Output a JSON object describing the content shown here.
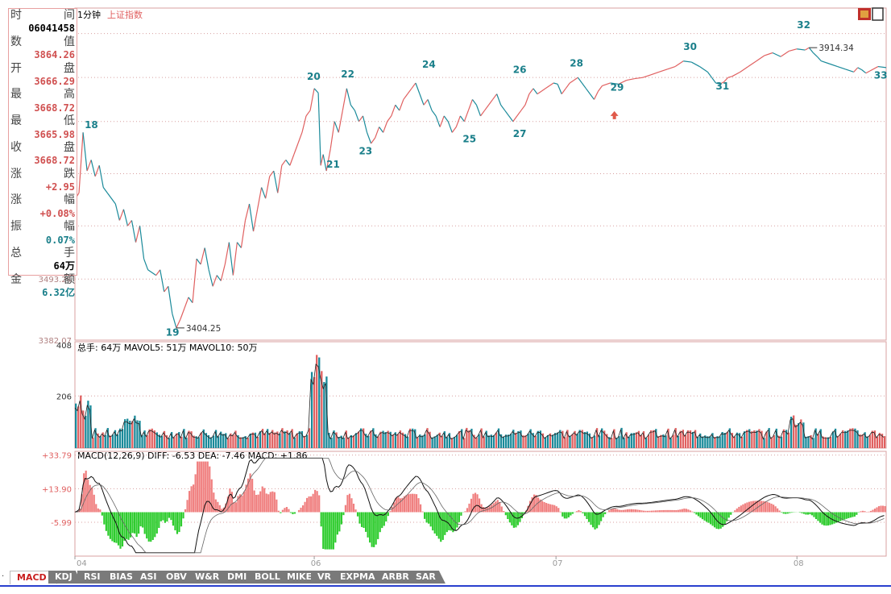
{
  "header": {
    "period": "1分钟",
    "index_name": "上证指数"
  },
  "info_box": {
    "rows": [
      {
        "label": "时",
        "label_right": "间",
        "value": ""
      },
      {
        "label": "",
        "label_right": "",
        "value": "06041458",
        "color": "#000000"
      },
      {
        "label": "数",
        "label_right": "值",
        "value": ""
      },
      {
        "label": "",
        "label_right": "",
        "value": "3864.26",
        "color": "#d05050"
      },
      {
        "label": "开",
        "label_right": "盘",
        "value": ""
      },
      {
        "label": "",
        "label_right": "",
        "value": "3666.29",
        "color": "#d05050"
      },
      {
        "label": "最",
        "label_right": "高",
        "value": ""
      },
      {
        "label": "",
        "label_right": "",
        "value": "3668.72",
        "color": "#d05050"
      },
      {
        "label": "最",
        "label_right": "低",
        "value": ""
      },
      {
        "label": "",
        "label_right": "",
        "value": "3665.98",
        "color": "#d05050"
      },
      {
        "label": "收",
        "label_right": "盘",
        "value": ""
      },
      {
        "label": "",
        "label_right": "",
        "value": "3668.72",
        "color": "#d05050"
      },
      {
        "label": "涨",
        "label_right": "跌",
        "value": ""
      },
      {
        "label": "",
        "label_right": "",
        "value": "+2.95",
        "color": "#d05050"
      },
      {
        "label": "涨",
        "label_right": "幅",
        "value": ""
      },
      {
        "label": "",
        "label_right": "",
        "value": "+0.08%",
        "color": "#d05050"
      },
      {
        "label": "振",
        "label_right": "幅",
        "value": ""
      },
      {
        "label": "",
        "label_right": "",
        "value": "0.07%",
        "color": "#1a7f8a"
      },
      {
        "label": "总",
        "label_right": "手",
        "value": ""
      },
      {
        "label": "",
        "label_right": "",
        "value": "64万",
        "color": "#000000"
      },
      {
        "label": "金",
        "label_right": "额",
        "value": ""
      },
      {
        "label": "",
        "label_right": "",
        "value": "6.32亿",
        "color": "#1a7f8a"
      }
    ]
  },
  "tabs": [
    {
      "label": "MACD",
      "active": true
    },
    {
      "label": "KDJ"
    },
    {
      "label": "RSI"
    },
    {
      "label": "BIAS"
    },
    {
      "label": "ASI"
    },
    {
      "label": "OBV"
    },
    {
      "label": "W&R"
    },
    {
      "label": "DMI"
    },
    {
      "label": "BOLL"
    },
    {
      "label": "MIKE"
    },
    {
      "label": "VR"
    },
    {
      "label": "EXPMA"
    },
    {
      "label": "ARBR"
    },
    {
      "label": "SAR"
    }
  ],
  "colors": {
    "up": "#e06060",
    "down": "#1a8a9a",
    "grid": "#d8a0a0",
    "label_red": "#e06060",
    "label_teal": "#1a7f8a",
    "macd_pos": "#f08080",
    "macd_neg": "#2ecc2e"
  },
  "chart_data": [
    {
      "type": "line",
      "name": "price",
      "ylim": [
        3382.07,
        3960
      ],
      "yticks": [
        3382.07,
        3493.24
      ],
      "xticks": [
        {
          "label": "04",
          "x": 0
        },
        {
          "label": "06",
          "x": 0.295
        },
        {
          "label": "07",
          "x": 0.593
        },
        {
          "label": "08",
          "x": 0.89
        }
      ],
      "price_path": [
        [
          0.0,
          3638
        ],
        [
          0.005,
          3650
        ],
        [
          0.01,
          3760
        ],
        [
          0.015,
          3690
        ],
        [
          0.02,
          3710
        ],
        [
          0.025,
          3680
        ],
        [
          0.03,
          3700
        ],
        [
          0.035,
          3660
        ],
        [
          0.04,
          3650
        ],
        [
          0.05,
          3630
        ],
        [
          0.055,
          3600
        ],
        [
          0.06,
          3620
        ],
        [
          0.065,
          3590
        ],
        [
          0.07,
          3600
        ],
        [
          0.075,
          3560
        ],
        [
          0.08,
          3590
        ],
        [
          0.085,
          3530
        ],
        [
          0.09,
          3510
        ],
        [
          0.1,
          3500
        ],
        [
          0.105,
          3510
        ],
        [
          0.11,
          3470
        ],
        [
          0.115,
          3480
        ],
        [
          0.12,
          3430
        ],
        [
          0.125,
          3404.25
        ],
        [
          0.13,
          3420
        ],
        [
          0.135,
          3440
        ],
        [
          0.14,
          3460
        ],
        [
          0.145,
          3450
        ],
        [
          0.15,
          3530
        ],
        [
          0.155,
          3520
        ],
        [
          0.16,
          3550
        ],
        [
          0.165,
          3510
        ],
        [
          0.17,
          3480
        ],
        [
          0.175,
          3500
        ],
        [
          0.18,
          3490
        ],
        [
          0.185,
          3520
        ],
        [
          0.19,
          3560
        ],
        [
          0.195,
          3500
        ],
        [
          0.2,
          3560
        ],
        [
          0.205,
          3550
        ],
        [
          0.21,
          3600
        ],
        [
          0.215,
          3630
        ],
        [
          0.22,
          3580
        ],
        [
          0.225,
          3620
        ],
        [
          0.23,
          3660
        ],
        [
          0.235,
          3640
        ],
        [
          0.24,
          3680
        ],
        [
          0.245,
          3690
        ],
        [
          0.25,
          3650
        ],
        [
          0.255,
          3700
        ],
        [
          0.26,
          3710
        ],
        [
          0.265,
          3700
        ],
        [
          0.27,
          3720
        ],
        [
          0.275,
          3740
        ],
        [
          0.28,
          3760
        ],
        [
          0.285,
          3790
        ],
        [
          0.29,
          3800
        ],
        [
          0.295,
          3840
        ],
        [
          0.3,
          3832
        ],
        [
          0.303,
          3700
        ],
        [
          0.306,
          3720
        ],
        [
          0.31,
          3690
        ],
        [
          0.315,
          3730
        ],
        [
          0.32,
          3780
        ],
        [
          0.325,
          3760
        ],
        [
          0.33,
          3800
        ],
        [
          0.335,
          3840
        ],
        [
          0.34,
          3810
        ],
        [
          0.345,
          3800
        ],
        [
          0.35,
          3780
        ],
        [
          0.355,
          3790
        ],
        [
          0.36,
          3760
        ],
        [
          0.365,
          3740
        ],
        [
          0.37,
          3750
        ],
        [
          0.375,
          3770
        ],
        [
          0.38,
          3760
        ],
        [
          0.385,
          3780
        ],
        [
          0.39,
          3790
        ],
        [
          0.395,
          3810
        ],
        [
          0.4,
          3800
        ],
        [
          0.405,
          3820
        ],
        [
          0.41,
          3830
        ],
        [
          0.415,
          3840
        ],
        [
          0.42,
          3850
        ],
        [
          0.425,
          3830
        ],
        [
          0.43,
          3810
        ],
        [
          0.435,
          3820
        ],
        [
          0.44,
          3800
        ],
        [
          0.445,
          3790
        ],
        [
          0.45,
          3770
        ],
        [
          0.455,
          3790
        ],
        [
          0.46,
          3780
        ],
        [
          0.465,
          3760
        ],
        [
          0.47,
          3770
        ],
        [
          0.475,
          3790
        ],
        [
          0.48,
          3780
        ],
        [
          0.485,
          3800
        ],
        [
          0.49,
          3820
        ],
        [
          0.495,
          3810
        ],
        [
          0.5,
          3790
        ],
        [
          0.505,
          3800
        ],
        [
          0.51,
          3810
        ],
        [
          0.515,
          3820
        ],
        [
          0.52,
          3830
        ],
        [
          0.525,
          3810
        ],
        [
          0.53,
          3800
        ],
        [
          0.535,
          3790
        ],
        [
          0.54,
          3780
        ],
        [
          0.545,
          3790
        ],
        [
          0.55,
          3800
        ],
        [
          0.555,
          3810
        ],
        [
          0.56,
          3830
        ],
        [
          0.565,
          3840
        ],
        [
          0.57,
          3830
        ],
        [
          0.575,
          3835
        ],
        [
          0.58,
          3840
        ],
        [
          0.585,
          3845
        ],
        [
          0.59,
          3850
        ],
        [
          0.595,
          3848
        ],
        [
          0.6,
          3830
        ],
        [
          0.605,
          3840
        ],
        [
          0.61,
          3850
        ],
        [
          0.615,
          3855
        ],
        [
          0.62,
          3860
        ],
        [
          0.625,
          3850
        ],
        [
          0.63,
          3840
        ],
        [
          0.635,
          3830
        ],
        [
          0.64,
          3820
        ],
        [
          0.645,
          3835
        ],
        [
          0.65,
          3845
        ],
        [
          0.66,
          3850
        ],
        [
          0.67,
          3848
        ],
        [
          0.68,
          3855
        ],
        [
          0.69,
          3858
        ],
        [
          0.7,
          3860
        ],
        [
          0.71,
          3865
        ],
        [
          0.72,
          3870
        ],
        [
          0.73,
          3875
        ],
        [
          0.74,
          3880
        ],
        [
          0.75,
          3890
        ],
        [
          0.76,
          3888
        ],
        [
          0.77,
          3880
        ],
        [
          0.78,
          3870
        ],
        [
          0.785,
          3860
        ],
        [
          0.79,
          3850
        ],
        [
          0.795,
          3848
        ],
        [
          0.8,
          3852
        ],
        [
          0.805,
          3860
        ],
        [
          0.81,
          3862
        ],
        [
          0.82,
          3870
        ],
        [
          0.83,
          3880
        ],
        [
          0.84,
          3890
        ],
        [
          0.85,
          3900
        ],
        [
          0.86,
          3905
        ],
        [
          0.87,
          3898
        ],
        [
          0.88,
          3908
        ],
        [
          0.89,
          3912
        ],
        [
          0.9,
          3910
        ],
        [
          0.905,
          3914.34
        ],
        [
          0.91,
          3905
        ],
        [
          0.915,
          3898
        ],
        [
          0.92,
          3890
        ],
        [
          0.93,
          3885
        ],
        [
          0.94,
          3880
        ],
        [
          0.95,
          3875
        ],
        [
          0.96,
          3870
        ],
        [
          0.965,
          3878
        ],
        [
          0.97,
          3874
        ],
        [
          0.975,
          3868
        ],
        [
          0.98,
          3872
        ],
        [
          0.99,
          3880
        ],
        [
          1.0,
          3878
        ]
      ],
      "labels": [
        {
          "text": "18",
          "x": 0.012,
          "y": 3768
        },
        {
          "text": "19",
          "x": 0.112,
          "y": 3390
        },
        {
          "text": "20",
          "x": 0.286,
          "y": 3856
        },
        {
          "text": "21",
          "x": 0.31,
          "y": 3696
        },
        {
          "text": "22",
          "x": 0.328,
          "y": 3860
        },
        {
          "text": "23",
          "x": 0.35,
          "y": 3720
        },
        {
          "text": "24",
          "x": 0.428,
          "y": 3878
        },
        {
          "text": "25",
          "x": 0.478,
          "y": 3742
        },
        {
          "text": "26",
          "x": 0.54,
          "y": 3868
        },
        {
          "text": "27",
          "x": 0.54,
          "y": 3752
        },
        {
          "text": "28",
          "x": 0.61,
          "y": 3880
        },
        {
          "text": "29",
          "x": 0.66,
          "y": 3836
        },
        {
          "text": "30",
          "x": 0.75,
          "y": 3910
        },
        {
          "text": "31",
          "x": 0.79,
          "y": 3838
        },
        {
          "text": "32",
          "x": 0.89,
          "y": 3950
        },
        {
          "text": "33",
          "x": 0.985,
          "y": 3858
        }
      ],
      "annotations": [
        {
          "text": "3404.25",
          "x": 0.125,
          "y": 3404.25
        },
        {
          "text": "3914.34",
          "x": 0.905,
          "y": 3914.34
        }
      ]
    },
    {
      "type": "bar",
      "name": "volume",
      "legend": "总手: 64万  MAVOL5: 51万  MAVOL10: 50万",
      "ylim": [
        0,
        420
      ],
      "yticks": [
        206,
        408
      ]
    },
    {
      "type": "bar",
      "name": "macd",
      "legend": "MACD(12,26,9) DIFF: -6.53 DEA: -7.46 MACD: +1.86",
      "ylim": [
        -26,
        36
      ],
      "yticks": [
        "+33.79",
        "+13.90",
        "-5.99"
      ]
    }
  ]
}
